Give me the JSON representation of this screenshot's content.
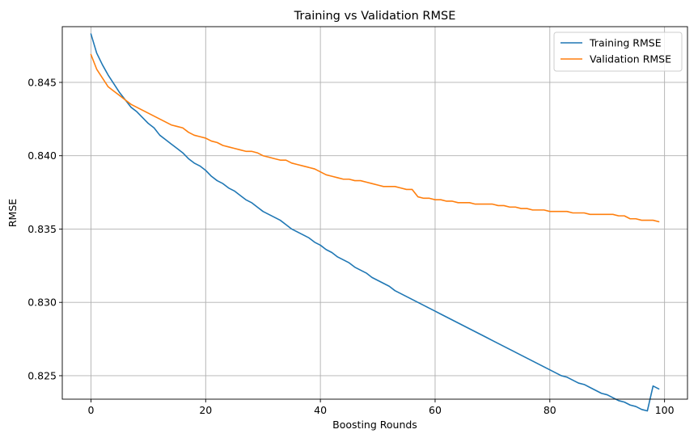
{
  "chart_data": {
    "type": "line",
    "title": "Training vs Validation RMSE",
    "xlabel": "Boosting Rounds",
    "ylabel": "RMSE",
    "xlim": [
      -5,
      104
    ],
    "ylim": [
      0.8234,
      0.8488
    ],
    "xticks": [
      0,
      20,
      40,
      60,
      80,
      100
    ],
    "yticks": [
      0.825,
      0.83,
      0.835,
      0.84,
      0.845
    ],
    "xtick_labels": [
      "0",
      "20",
      "40",
      "60",
      "80",
      "100"
    ],
    "ytick_labels": [
      "0.825",
      "0.830",
      "0.835",
      "0.840",
      "0.845"
    ],
    "grid": true,
    "legend_position": "top-right",
    "series": [
      {
        "name": "Training RMSE",
        "color": "#1f77b4",
        "values": [
          0.8483,
          0.847,
          0.8462,
          0.8455,
          0.8449,
          0.8443,
          0.8438,
          0.8433,
          0.843,
          0.8426,
          0.8422,
          0.8419,
          0.8414,
          0.8411,
          0.8408,
          0.8405,
          0.8402,
          0.8398,
          0.8395,
          0.8393,
          0.839,
          0.8386,
          0.8383,
          0.8381,
          0.8378,
          0.8376,
          0.8373,
          0.837,
          0.8368,
          0.8365,
          0.8362,
          0.836,
          0.8358,
          0.8356,
          0.8353,
          0.835,
          0.8348,
          0.8346,
          0.8344,
          0.8341,
          0.8339,
          0.8336,
          0.8334,
          0.8331,
          0.8329,
          0.8327,
          0.8324,
          0.8322,
          0.832,
          0.8317,
          0.8315,
          0.8313,
          0.8311,
          0.8308,
          0.8306,
          0.8304,
          0.8302,
          0.83,
          0.8298,
          0.8296,
          0.8294,
          0.8292,
          0.829,
          0.8288,
          0.8286,
          0.8284,
          0.8282,
          0.828,
          0.8278,
          0.8276,
          0.8274,
          0.8272,
          0.827,
          0.8268,
          0.8266,
          0.8264,
          0.8262,
          0.826,
          0.8258,
          0.8256,
          0.8254,
          0.8252,
          0.825,
          0.8249,
          0.8247,
          0.8245,
          0.8244,
          0.8242,
          0.824,
          0.8238,
          0.8237,
          0.8235,
          0.8233,
          0.8232,
          0.823,
          0.8229,
          0.8227,
          0.8226,
          0.8243,
          0.8241
        ]
      },
      {
        "name": "Validation RMSE",
        "color": "#ff7f0e",
        "values": [
          0.8469,
          0.8459,
          0.8453,
          0.8447,
          0.8444,
          0.8441,
          0.8438,
          0.8435,
          0.8433,
          0.8431,
          0.8429,
          0.8427,
          0.8425,
          0.8423,
          0.8421,
          0.842,
          0.8419,
          0.8416,
          0.8414,
          0.8413,
          0.8412,
          0.841,
          0.8409,
          0.8407,
          0.8406,
          0.8405,
          0.8404,
          0.8403,
          0.8403,
          0.8402,
          0.84,
          0.8399,
          0.8398,
          0.8397,
          0.8397,
          0.8395,
          0.8394,
          0.8393,
          0.8392,
          0.8391,
          0.8389,
          0.8387,
          0.8386,
          0.8385,
          0.8384,
          0.8384,
          0.8383,
          0.8383,
          0.8382,
          0.8381,
          0.838,
          0.8379,
          0.8379,
          0.8379,
          0.8378,
          0.8377,
          0.8377,
          0.8372,
          0.8371,
          0.8371,
          0.837,
          0.837,
          0.8369,
          0.8369,
          0.8368,
          0.8368,
          0.8368,
          0.8367,
          0.8367,
          0.8367,
          0.8367,
          0.8366,
          0.8366,
          0.8365,
          0.8365,
          0.8364,
          0.8364,
          0.8363,
          0.8363,
          0.8363,
          0.8362,
          0.8362,
          0.8362,
          0.8362,
          0.8361,
          0.8361,
          0.8361,
          0.836,
          0.836,
          0.836,
          0.836,
          0.836,
          0.8359,
          0.8359,
          0.8357,
          0.8357,
          0.8356,
          0.8356,
          0.8356,
          0.8355
        ]
      }
    ]
  }
}
